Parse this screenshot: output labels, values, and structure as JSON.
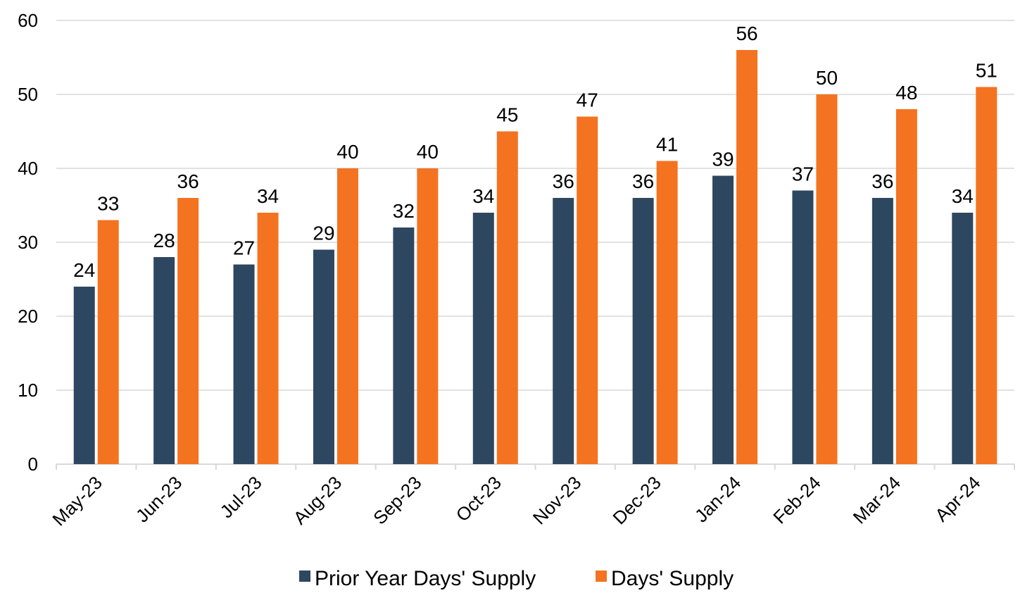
{
  "chart_data": {
    "type": "bar",
    "categories": [
      "May-23",
      "Jun-23",
      "Jul-23",
      "Aug-23",
      "Sep-23",
      "Oct-23",
      "Nov-23",
      "Dec-23",
      "Jan-24",
      "Feb-24",
      "Mar-24",
      "Apr-24"
    ],
    "series": [
      {
        "name": "Prior Year Days' Supply",
        "color": "#2e4761",
        "values": [
          24,
          28,
          27,
          29,
          32,
          34,
          36,
          36,
          39,
          37,
          36,
          34
        ]
      },
      {
        "name": "Days' Supply",
        "color": "#f47321",
        "values": [
          33,
          36,
          34,
          40,
          40,
          45,
          47,
          41,
          56,
          50,
          48,
          51
        ]
      }
    ],
    "ylim": [
      0,
      60
    ],
    "yticks": [
      0,
      10,
      20,
      30,
      40,
      50,
      60
    ],
    "grid": true,
    "legend": "bottom-center",
    "data_labels": true
  }
}
